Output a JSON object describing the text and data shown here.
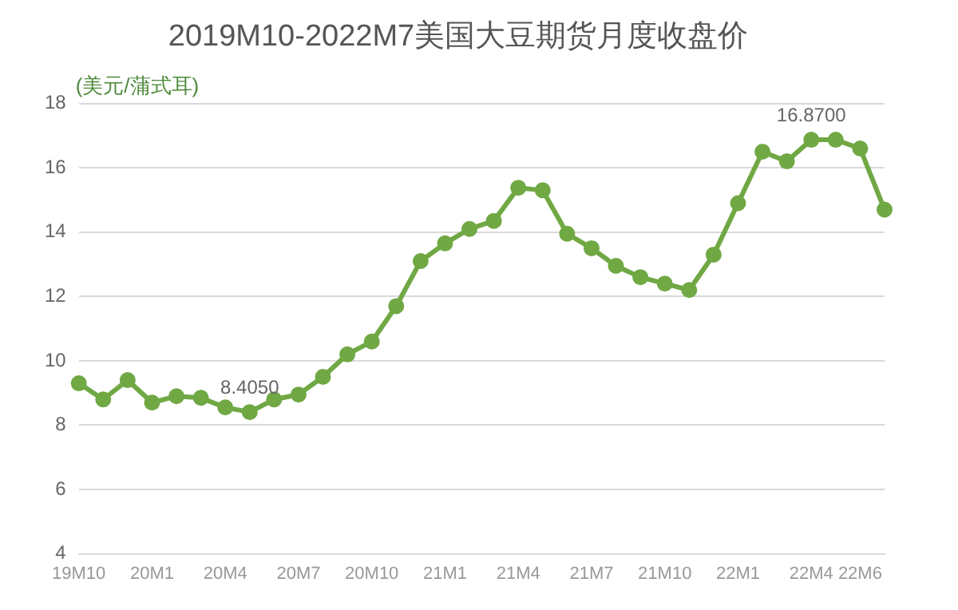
{
  "chart_data": {
    "type": "line",
    "title": "2019M10-2022M7美国大豆期货月度收盘价",
    "ylabel": "(美元/蒲式耳)",
    "categories": [
      "19M10",
      null,
      null,
      "20M1",
      null,
      null,
      "20M4",
      null,
      null,
      "20M7",
      null,
      null,
      "20M10",
      null,
      null,
      "21M1",
      null,
      null,
      "21M4",
      null,
      null,
      "21M7",
      null,
      null,
      "21M10",
      null,
      null,
      "22M1",
      null,
      null,
      "22M4",
      null,
      "22M6",
      null
    ],
    "series": [
      {
        "color": "#70a844",
        "values": [
          9.3,
          8.8,
          9.4,
          8.7,
          8.9,
          8.85,
          8.55,
          8.405,
          8.8,
          8.95,
          9.5,
          10.2,
          10.6,
          11.7,
          13.1,
          13.65,
          14.1,
          14.35,
          15.38,
          15.3,
          13.95,
          13.5,
          12.95,
          12.6,
          12.4,
          12.2,
          13.3,
          14.9,
          16.5,
          16.2,
          16.87,
          16.87,
          16.6,
          14.7
        ],
        "value_labels": [
          null,
          null,
          null,
          null,
          null,
          null,
          null,
          "8.4050",
          null,
          null,
          null,
          null,
          null,
          null,
          null,
          null,
          null,
          null,
          null,
          null,
          null,
          null,
          null,
          null,
          null,
          null,
          null,
          null,
          null,
          null,
          "16.8700",
          null,
          null,
          null
        ]
      }
    ],
    "ylim": [
      4,
      18
    ],
    "yticks": [
      4,
      6,
      8,
      10,
      12,
      14,
      16,
      18
    ],
    "grid": "y",
    "marker": "circle",
    "line_style": "solid",
    "legend": false
  }
}
